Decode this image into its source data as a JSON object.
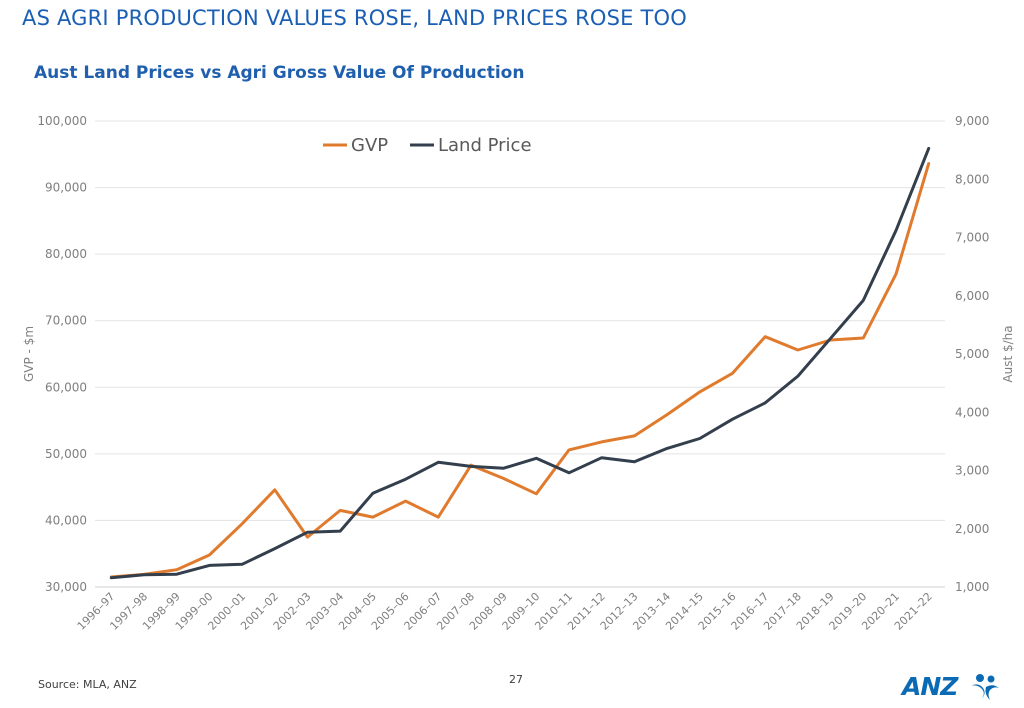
{
  "slide_title": "AS AGRI PRODUCTION VALUES ROSE, LAND PRICES ROSE TOO",
  "source": "Source: MLA, ANZ",
  "page_number": "27",
  "logo_text": "ANZ",
  "colors": {
    "gvp": "#e07b2e",
    "land_price": "#333f4c",
    "title": "#1f5fad",
    "grid": "#e3e3e3",
    "axis_text": "#7f7f7f"
  },
  "chart_data": {
    "type": "line",
    "title": "Aust Land Prices vs Agri Gross Value Of Production",
    "ylabel_left": "GVP - $m",
    "ylabel_right": "Aust $/ha",
    "ylim_left": [
      30000,
      100000
    ],
    "ylim_right": [
      1000,
      9000
    ],
    "yticks_left": [
      "30,000",
      "40,000",
      "50,000",
      "60,000",
      "70,000",
      "80,000",
      "90,000",
      "100,000"
    ],
    "yticks_right": [
      "1,000",
      "2,000",
      "3,000",
      "4,000",
      "5,000",
      "6,000",
      "7,000",
      "8,000",
      "9,000"
    ],
    "grid": true,
    "legend_position": "top-left",
    "categories": [
      "1996–97",
      "1997–98",
      "1998–99",
      "1999–00",
      "2000–01",
      "2001–02",
      "2002–03",
      "2003–04",
      "2004–05",
      "2005–06",
      "2006–07",
      "2007–08",
      "2008–09",
      "2009–10",
      "2010–11",
      "2011–12",
      "2012–13",
      "2013–14",
      "2014–15",
      "2015–16",
      "2016–17",
      "2017–18",
      "2018–19",
      "2019–20",
      "2020–21",
      "2021–22"
    ],
    "series": [
      {
        "name": "GVP",
        "axis": "left",
        "values": [
          31500,
          31900,
          32600,
          34800,
          39500,
          44600,
          37500,
          41500,
          40500,
          42900,
          40500,
          48300,
          46300,
          44000,
          50600,
          51800,
          52700,
          55900,
          59300,
          62100,
          67600,
          65600,
          67100,
          67400,
          77000,
          93600
        ]
      },
      {
        "name": "Land Price",
        "axis": "right",
        "values": [
          1160,
          1210,
          1220,
          1370,
          1390,
          1660,
          1940,
          1960,
          2610,
          2850,
          3140,
          3070,
          3040,
          3210,
          2960,
          3220,
          3150,
          3380,
          3550,
          3880,
          4160,
          4620,
          5270,
          5920,
          7120,
          8530
        ]
      }
    ]
  }
}
